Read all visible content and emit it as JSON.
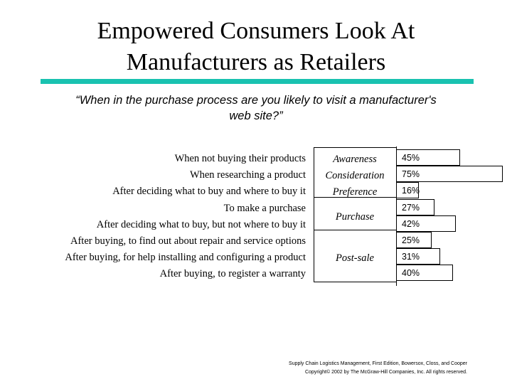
{
  "title": {
    "line1": "Empowered Consumers Look At",
    "line2": "Manufacturers as Retailers"
  },
  "question": {
    "line1": "“When in the purchase process are you likely to visit a manufacturer's",
    "line2": "web site?”"
  },
  "colors": {
    "rule": "#19c2b0"
  },
  "chart_data": {
    "type": "bar",
    "orientation": "horizontal",
    "categories": [
      "When not buying their products",
      "When researching a product",
      "After deciding what to buy and where to buy it",
      "To make a purchase",
      "After deciding what to buy, but not where to buy it",
      "After buying, to find out about repair and service options",
      "After buying, for help installing and configuring a product",
      "After buying, to register a warranty"
    ],
    "values": [
      45,
      75,
      16,
      27,
      42,
      25,
      31,
      40
    ],
    "value_labels": [
      "45%",
      "75%",
      "16%",
      "27%",
      "42%",
      "25%",
      "31%",
      "40%"
    ],
    "xlim": [
      0,
      100
    ],
    "grid": false,
    "stages": [
      {
        "label": "Awareness",
        "rows": [
          0
        ]
      },
      {
        "label": "Consideration",
        "rows": [
          1
        ]
      },
      {
        "label": "Preference",
        "rows": [
          2
        ]
      },
      {
        "label": "Purchase",
        "rows": [
          3,
          4
        ]
      },
      {
        "label": "Post-sale",
        "rows": [
          5,
          6,
          7
        ]
      }
    ]
  },
  "footer": {
    "line1": "Supply Chain Logistics Management, First Edition, Bowersox, Closs, and Cooper",
    "line2": "Copyright© 2002 by The McGraw-Hill Companies, Inc. All rights reserved."
  }
}
